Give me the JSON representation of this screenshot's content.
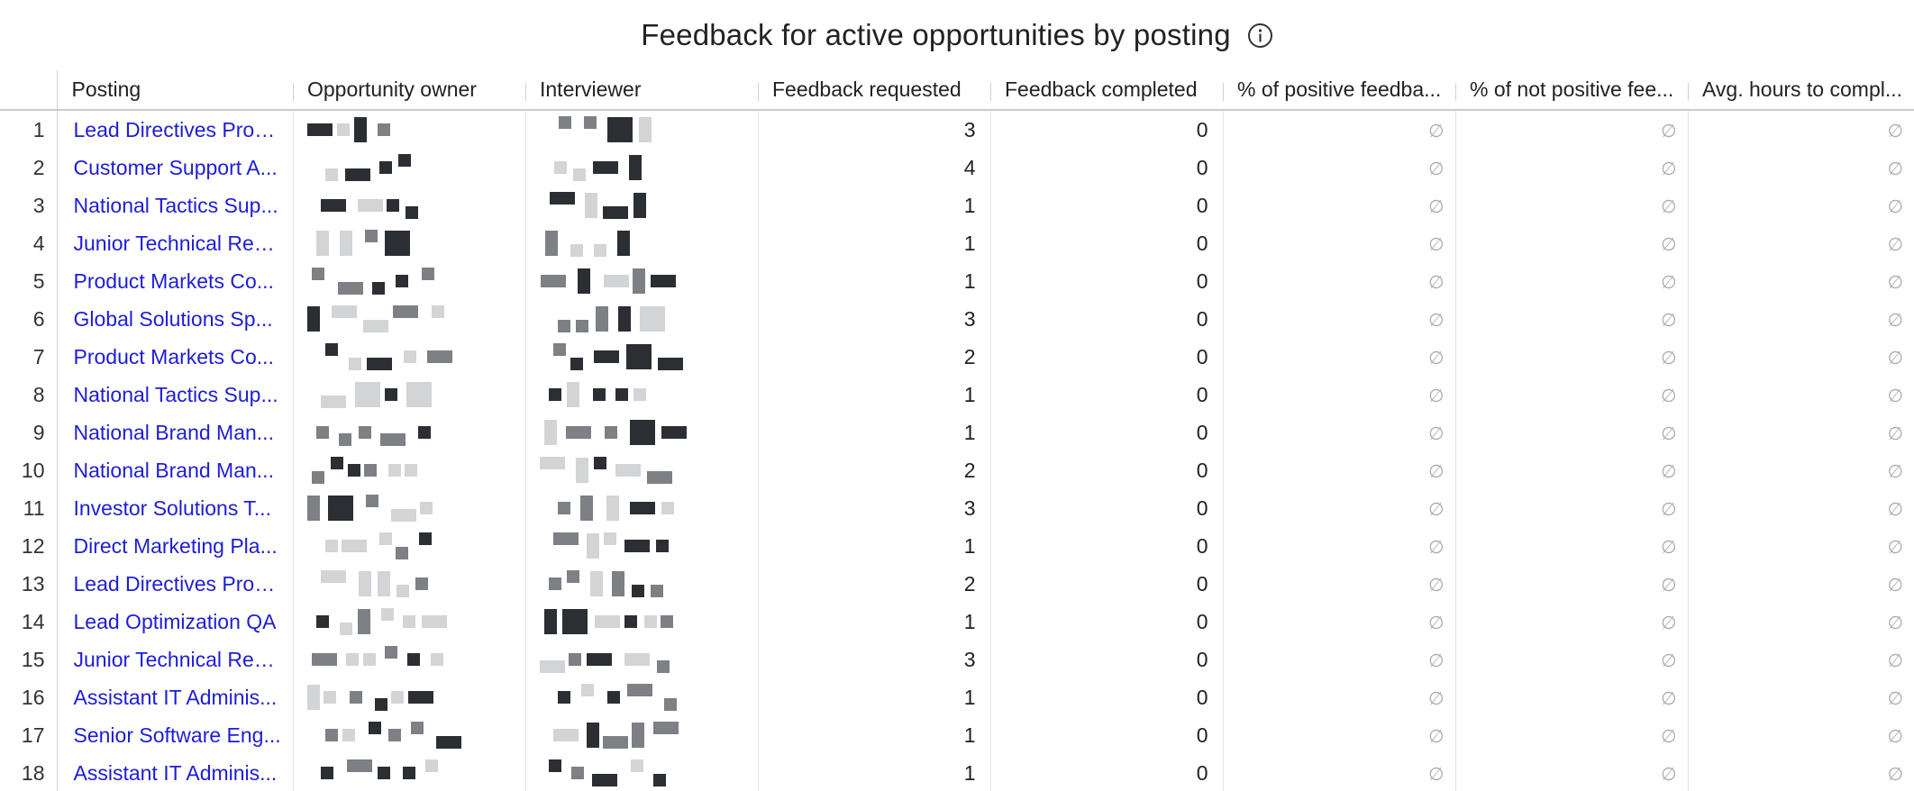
{
  "report": {
    "title": "Feedback for active opportunities by posting",
    "info_icon": "info-circle-icon"
  },
  "colors": {
    "link": "#1d1dd8",
    "null_icon": "#a8abb0",
    "redaction_dark": "#2b2f33",
    "redaction_mid": "#7d8084",
    "redaction_light": "#d3d4d6"
  },
  "table": {
    "columns": [
      "Posting",
      "Opportunity owner",
      "Interviewer",
      "Feedback requested",
      "Feedback completed",
      "% of positive feedba...",
      "% of not positive fee...",
      "Avg. hours to compl..."
    ],
    "null_symbol": "∅",
    "rows": [
      {
        "n": "1",
        "posting": "Lead Directives Prod...",
        "requested": "3",
        "completed": "0"
      },
      {
        "n": "2",
        "posting": "Customer Support A...",
        "requested": "4",
        "completed": "0"
      },
      {
        "n": "3",
        "posting": "National Tactics Sup...",
        "requested": "1",
        "completed": "0"
      },
      {
        "n": "4",
        "posting": "Junior Technical Recr...",
        "requested": "1",
        "completed": "0"
      },
      {
        "n": "5",
        "posting": "Product Markets Co...",
        "requested": "1",
        "completed": "0"
      },
      {
        "n": "6",
        "posting": "Global Solutions Sp...",
        "requested": "3",
        "completed": "0"
      },
      {
        "n": "7",
        "posting": "Product Markets Co...",
        "requested": "2",
        "completed": "0"
      },
      {
        "n": "8",
        "posting": "National Tactics Sup...",
        "requested": "1",
        "completed": "0"
      },
      {
        "n": "9",
        "posting": "National Brand Man...",
        "requested": "1",
        "completed": "0"
      },
      {
        "n": "10",
        "posting": "National Brand Man...",
        "requested": "2",
        "completed": "0"
      },
      {
        "n": "11",
        "posting": "Investor Solutions T...",
        "requested": "3",
        "completed": "0"
      },
      {
        "n": "12",
        "posting": "Direct Marketing Pla...",
        "requested": "1",
        "completed": "0"
      },
      {
        "n": "13",
        "posting": "Lead Directives Prod...",
        "requested": "2",
        "completed": "0"
      },
      {
        "n": "14",
        "posting": "Lead Optimization QA",
        "requested": "1",
        "completed": "0"
      },
      {
        "n": "15",
        "posting": "Junior Technical Recr...",
        "requested": "3",
        "completed": "0"
      },
      {
        "n": "16",
        "posting": "Assistant IT Adminis...",
        "requested": "1",
        "completed": "0"
      },
      {
        "n": "17",
        "posting": "Senior Software Eng...",
        "requested": "1",
        "completed": "0"
      },
      {
        "n": "18",
        "posting": "Assistant IT Adminis...",
        "requested": "1",
        "completed": "0"
      }
    ]
  }
}
